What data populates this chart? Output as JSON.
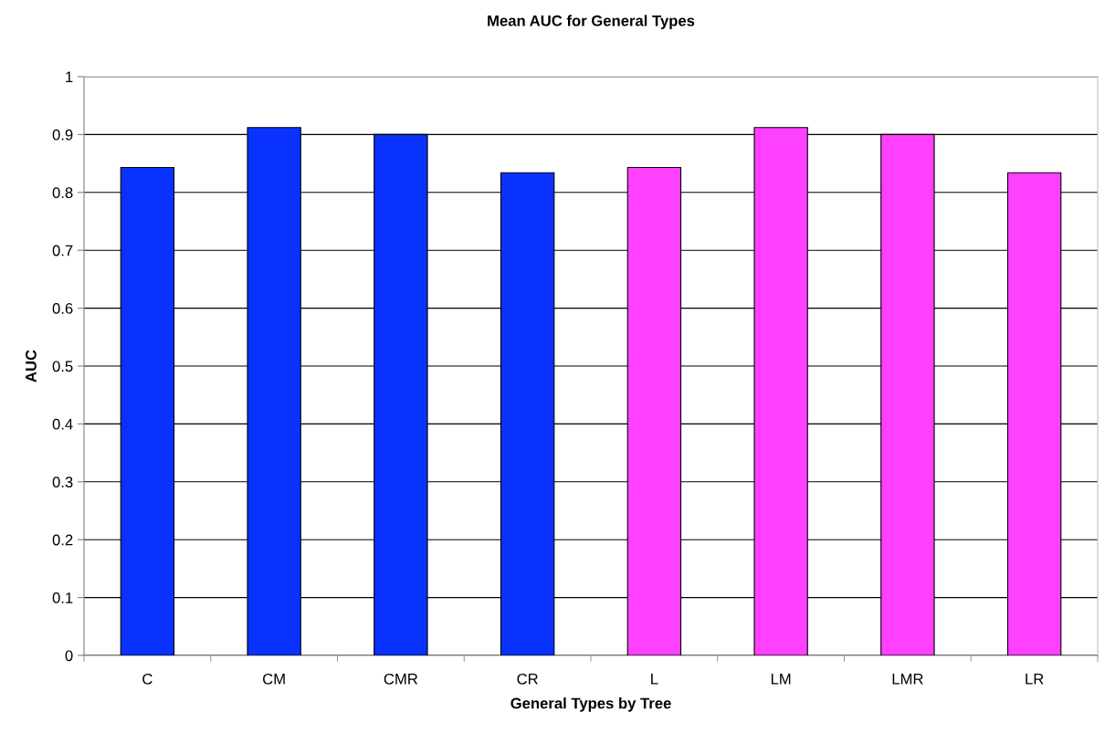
{
  "chart_data": {
    "type": "bar",
    "title": "Mean AUC for General Types",
    "xlabel": "General Types by Tree",
    "ylabel": "AUC",
    "categories": [
      "C",
      "CM",
      "CMR",
      "CR",
      "L",
      "LM",
      "LMR",
      "LR"
    ],
    "values": [
      0.843,
      0.912,
      0.9,
      0.834,
      0.843,
      0.912,
      0.9,
      0.834
    ],
    "colors": [
      "#0a32ff",
      "#0a32ff",
      "#0a32ff",
      "#0a32ff",
      "#ff40ff",
      "#ff40ff",
      "#ff40ff",
      "#ff40ff"
    ],
    "ylim": [
      0,
      1
    ],
    "yticks": [
      0,
      0.1,
      0.2,
      0.3,
      0.4,
      0.5,
      0.6,
      0.7,
      0.8,
      0.9,
      1
    ],
    "grid": "y",
    "legend": false
  }
}
